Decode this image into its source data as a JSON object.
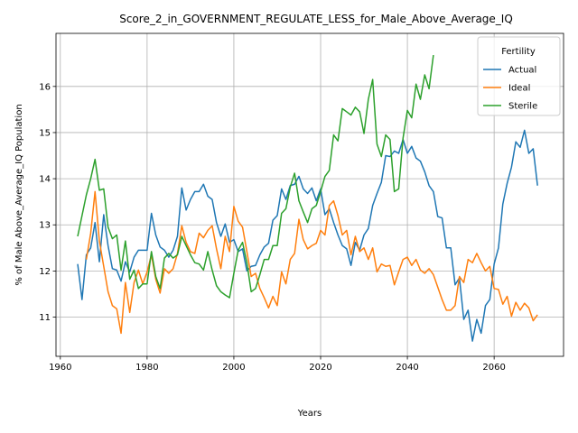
{
  "chart_data": {
    "type": "line",
    "title": "Score_2_in_GOVERNMENT_REGULATE_LESS_for_Male_Above_Average_IQ",
    "xlabel": "Years",
    "ylabel": "% of Male Above_Average_IQ Population",
    "xlim": [
      1959,
      2076
    ],
    "ylim": [
      10.15,
      17.15
    ],
    "x_ticks": [
      1960,
      1980,
      2000,
      2020,
      2040,
      2060
    ],
    "y_ticks": [
      11,
      12,
      13,
      14,
      15,
      16
    ],
    "grid": true,
    "legend": {
      "title": "Fertility",
      "position": "top-right"
    },
    "series": [
      {
        "name": "Actual",
        "color": "#1f77b4",
        "x": [
          1964,
          1965,
          1966,
          1967,
          1968,
          1969,
          1970,
          1971,
          1972,
          1973,
          1974,
          1975,
          1976,
          1977,
          1978,
          1979,
          1980,
          1981,
          1982,
          1983,
          1984,
          1985,
          1986,
          1987,
          1988,
          1989,
          1990,
          1991,
          1992,
          1993,
          1994,
          1995,
          1996,
          1997,
          1998,
          1999,
          2000,
          2001,
          2002,
          2003,
          2004,
          2005,
          2006,
          2007,
          2008,
          2009,
          2010,
          2011,
          2012,
          2013,
          2014,
          2015,
          2016,
          2017,
          2018,
          2019,
          2020,
          2021,
          2022,
          2023,
          2024,
          2025,
          2026,
          2027,
          2028,
          2029,
          2030,
          2031,
          2032,
          2033,
          2034,
          2035,
          2036,
          2037,
          2038,
          2039,
          2040,
          2041,
          2042,
          2043,
          2044,
          2045,
          2046,
          2047,
          2048,
          2049,
          2050,
          2051,
          2052,
          2053,
          2054,
          2055,
          2056,
          2057,
          2058,
          2059,
          2060,
          2061,
          2062,
          2063,
          2064,
          2065,
          2066,
          2067,
          2068,
          2069,
          2070
        ],
        "y": [
          12.15,
          11.38,
          12.35,
          12.5,
          13.05,
          12.2,
          13.22,
          12.55,
          12.05,
          12.02,
          11.78,
          12.2,
          11.98,
          12.3,
          12.45,
          12.45,
          12.45,
          13.25,
          12.78,
          12.52,
          12.45,
          12.3,
          12.45,
          12.75,
          13.8,
          13.32,
          13.55,
          13.72,
          13.72,
          13.88,
          13.62,
          13.55,
          13.05,
          12.75,
          13.02,
          12.62,
          12.68,
          12.42,
          12.48,
          12.0,
          12.1,
          12.12,
          12.35,
          12.52,
          12.6,
          13.1,
          13.2,
          13.78,
          13.55,
          13.85,
          13.88,
          14.05,
          13.78,
          13.68,
          13.8,
          13.52,
          13.78,
          13.22,
          13.35,
          13.05,
          12.78,
          12.55,
          12.48,
          12.12,
          12.62,
          12.45,
          12.78,
          12.92,
          13.42,
          13.68,
          13.92,
          14.5,
          14.48,
          14.6,
          14.55,
          14.85,
          14.55,
          14.7,
          14.45,
          14.38,
          14.15,
          13.85,
          13.72,
          13.18,
          13.15,
          12.5,
          12.5,
          11.7,
          11.85,
          10.95,
          11.15,
          10.48,
          10.95,
          10.65,
          11.25,
          11.38,
          12.15,
          12.5,
          13.45,
          13.9,
          14.25,
          14.8,
          14.68,
          15.05,
          14.55,
          14.65,
          13.85
        ]
      },
      {
        "name": "Ideal",
        "color": "#ff7f0e",
        "x": [
          1964,
          1965,
          1966,
          1967,
          1968,
          1969,
          1970,
          1971,
          1972,
          1973,
          1974,
          1975,
          1976,
          1977,
          1978,
          1979,
          1980,
          1981,
          1982,
          1983,
          1984,
          1985,
          1986,
          1987,
          1988,
          1989,
          1990,
          1991,
          1992,
          1993,
          1994,
          1995,
          1996,
          1997,
          1998,
          1999,
          2000,
          2001,
          2002,
          2003,
          2004,
          2005,
          2006,
          2007,
          2008,
          2009,
          2010,
          2011,
          2012,
          2013,
          2014,
          2015,
          2016,
          2017,
          2018,
          2019,
          2020,
          2021,
          2022,
          2023,
          2024,
          2025,
          2026,
          2027,
          2028,
          2029,
          2030,
          2031,
          2032,
          2033,
          2034,
          2035,
          2036,
          2037,
          2038,
          2039,
          2040,
          2041,
          2042,
          2043,
          2044,
          2045,
          2046,
          2047,
          2048,
          2049,
          2050,
          2051,
          2052,
          2053,
          2054,
          2055,
          2056,
          2057,
          2058,
          2059,
          2060,
          2061,
          2062,
          2063,
          2064,
          2065,
          2066,
          2067,
          2068,
          2069,
          2070
        ],
        "y": [
          null,
          null,
          12.25,
          12.82,
          13.72,
          12.65,
          12.1,
          11.55,
          11.25,
          11.18,
          10.65,
          11.75,
          11.1,
          11.75,
          12.02,
          11.72,
          11.98,
          12.35,
          11.82,
          11.52,
          12.05,
          11.95,
          12.05,
          12.38,
          12.98,
          12.62,
          12.42,
          12.38,
          12.82,
          12.72,
          12.88,
          12.98,
          12.48,
          12.05,
          12.75,
          12.42,
          13.4,
          13.08,
          12.95,
          12.42,
          11.88,
          11.95,
          11.62,
          11.42,
          11.2,
          11.45,
          11.25,
          11.98,
          11.72,
          12.25,
          12.38,
          13.12,
          12.68,
          12.48,
          12.55,
          12.6,
          12.88,
          12.78,
          13.42,
          13.52,
          13.2,
          12.78,
          12.88,
          12.35,
          12.75,
          12.42,
          12.5,
          12.25,
          12.5,
          11.98,
          12.15,
          12.1,
          12.12,
          11.7,
          11.98,
          12.25,
          12.3,
          12.12,
          12.25,
          12.02,
          11.95,
          12.05,
          11.92,
          11.65,
          11.38,
          11.15,
          11.15,
          11.25,
          11.88,
          11.75,
          12.25,
          12.18,
          12.38,
          12.18,
          12.0,
          12.1,
          11.62,
          11.6,
          11.28,
          11.45,
          11.02,
          11.32,
          11.15,
          11.3,
          11.2,
          10.92,
          11.05
        ]
      },
      {
        "name": "Sterile",
        "color": "#2ca02c",
        "x": [
          1964,
          1965,
          1966,
          1967,
          1968,
          1969,
          1970,
          1971,
          1972,
          1973,
          1974,
          1975,
          1976,
          1977,
          1978,
          1979,
          1980,
          1981,
          1982,
          1983,
          1984,
          1985,
          1986,
          1987,
          1988,
          1989,
          1990,
          1991,
          1992,
          1993,
          1994,
          1995,
          1996,
          1997,
          1998,
          1999,
          2000,
          2001,
          2002,
          2003,
          2004,
          2005,
          2006,
          2007,
          2008,
          2009,
          2010,
          2011,
          2012,
          2013,
          2014,
          2015,
          2016,
          2017,
          2018,
          2019,
          2020,
          2021,
          2022,
          2023,
          2024,
          2025,
          2026,
          2027,
          2028,
          2029,
          2030,
          2031,
          2032,
          2033,
          2034,
          2035,
          2036,
          2037,
          2038,
          2039,
          2040,
          2041,
          2042,
          2043,
          2044,
          2045,
          2046
        ],
        "y": [
          12.75,
          13.2,
          13.65,
          14.0,
          14.42,
          13.75,
          13.78,
          12.95,
          12.7,
          12.78,
          12.02,
          12.65,
          11.82,
          12.02,
          11.62,
          11.72,
          11.72,
          12.42,
          11.88,
          11.62,
          12.28,
          12.38,
          12.28,
          12.35,
          12.75,
          12.55,
          12.35,
          12.18,
          12.15,
          12.02,
          12.42,
          12.02,
          11.68,
          11.55,
          11.48,
          11.42,
          11.95,
          12.45,
          12.62,
          12.18,
          11.55,
          11.62,
          11.92,
          12.25,
          12.25,
          12.55,
          12.55,
          13.25,
          13.35,
          13.82,
          14.12,
          13.52,
          13.28,
          13.05,
          13.35,
          13.42,
          13.72,
          14.05,
          14.18,
          14.95,
          14.82,
          15.52,
          15.45,
          15.38,
          15.55,
          15.45,
          14.98,
          15.72,
          16.15,
          14.75,
          14.48,
          14.95,
          14.85,
          13.72,
          13.78,
          14.88,
          15.48,
          15.32,
          16.05,
          15.72,
          16.25,
          15.95,
          16.68
        ]
      }
    ]
  }
}
